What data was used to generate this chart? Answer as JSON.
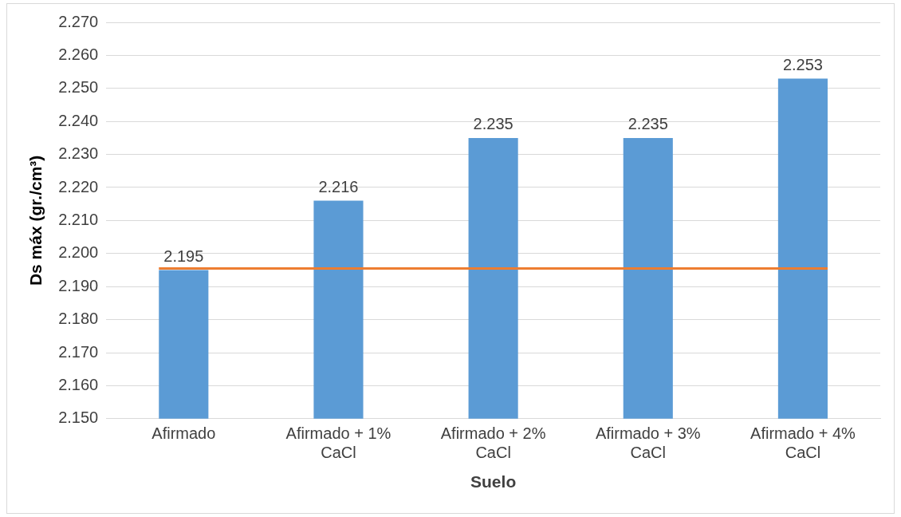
{
  "chart_data": {
    "type": "bar",
    "xlabel": "Suelo",
    "ylabel": "Ds máx (gr./cm³)",
    "categories": [
      "Afirmado",
      "Afirmado + 1% CaCl",
      "Afirmado + 2% CaCl",
      "Afirmado + 3% CaCl",
      "Afirmado + 4% CaCl"
    ],
    "values": [
      2.195,
      2.216,
      2.235,
      2.235,
      2.253
    ],
    "color": "#5b9bd5",
    "ylim": [
      2.15,
      2.27
    ],
    "yticks": [
      {
        "value": 2.15,
        "label": "2.150"
      },
      {
        "value": 2.16,
        "label": "2.160"
      },
      {
        "value": 2.17,
        "label": "2.170"
      },
      {
        "value": 2.18,
        "label": "2.180"
      },
      {
        "value": 2.19,
        "label": "2.190"
      },
      {
        "value": 2.2,
        "label": "2.200"
      },
      {
        "value": 2.21,
        "label": "2.210"
      },
      {
        "value": 2.22,
        "label": "2.220"
      },
      {
        "value": 2.23,
        "label": "2.230"
      },
      {
        "value": 2.24,
        "label": "2.240"
      },
      {
        "value": 2.25,
        "label": "2.250"
      },
      {
        "value": 2.26,
        "label": "2.260"
      },
      {
        "value": 2.27,
        "label": "2.270"
      }
    ],
    "ref_lines": [
      {
        "axis": "y",
        "value": 2.1955,
        "color": "#ed7d31"
      }
    ],
    "data_labels": true,
    "grid": "y",
    "legend": false
  }
}
